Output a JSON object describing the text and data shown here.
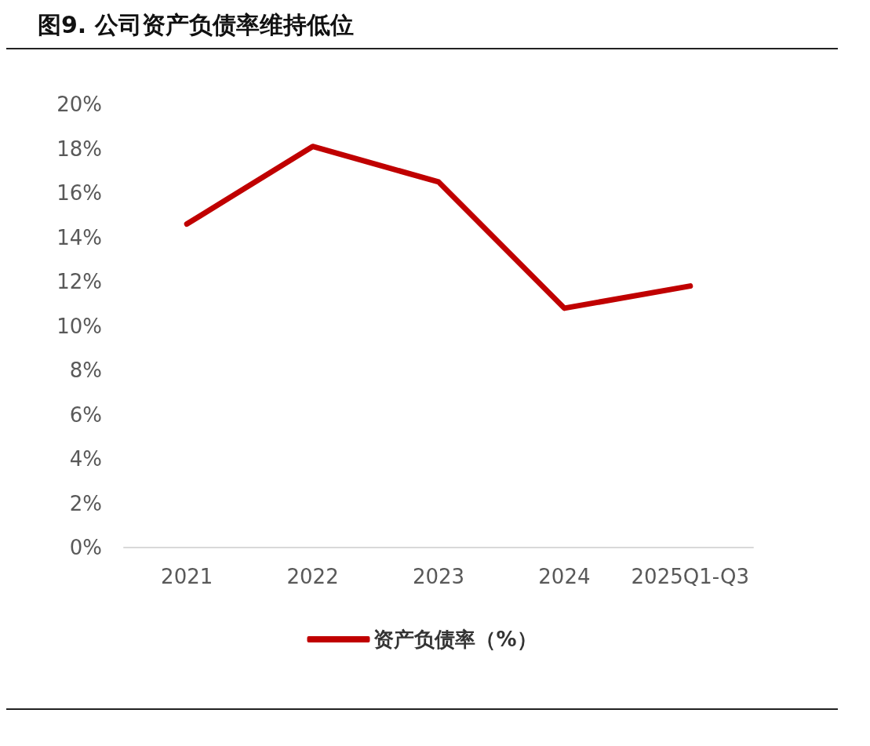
{
  "chart_data": {
    "type": "line",
    "title": "图9. 公司资产负债率维持低位",
    "categories": [
      "2021",
      "2022",
      "2023",
      "2024",
      "2025Q1-Q3"
    ],
    "series": [
      {
        "name": "资产负债率（%）",
        "color": "#c00000",
        "values": [
          14.6,
          18.1,
          16.5,
          10.8,
          11.8
        ]
      }
    ],
    "ylim": [
      0,
      20
    ],
    "yticks": [
      {
        "value": 0,
        "label": "0%"
      },
      {
        "value": 2,
        "label": "2%"
      },
      {
        "value": 4,
        "label": "4%"
      },
      {
        "value": 6,
        "label": "6%"
      },
      {
        "value": 8,
        "label": "8%"
      },
      {
        "value": 10,
        "label": "10%"
      },
      {
        "value": 12,
        "label": "12%"
      },
      {
        "value": 14,
        "label": "14%"
      },
      {
        "value": 16,
        "label": "16%"
      },
      {
        "value": 18,
        "label": "18%"
      },
      {
        "value": 20,
        "label": "20%"
      }
    ],
    "grid": false,
    "legend": "bottom",
    "marker": "none",
    "line_style": "solid"
  }
}
